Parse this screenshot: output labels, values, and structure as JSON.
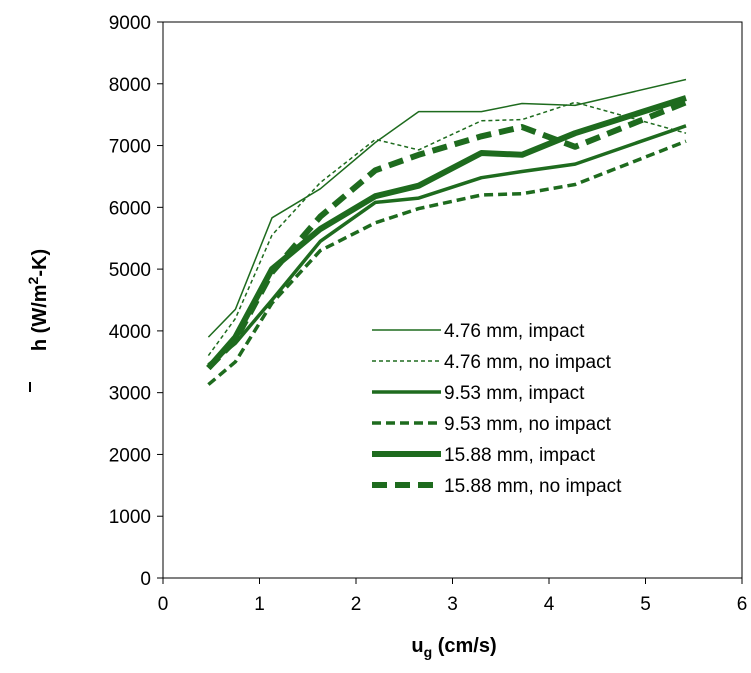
{
  "chart_data": {
    "type": "line",
    "xlabel_main": "u",
    "xlabel_sub": "g",
    "xlabel_rest": " (cm/s)",
    "ylabel_main": "h",
    "ylabel_rest": " (W/m",
    "ylabel_sup": "2",
    "ylabel_end": "-K)",
    "xlim": [
      0,
      6
    ],
    "ylim": [
      0,
      9000
    ],
    "xticks": [
      "0",
      "1",
      "2",
      "3",
      "4",
      "5",
      "6"
    ],
    "yticks": [
      "0",
      "1000",
      "2000",
      "3000",
      "4000",
      "5000",
      "6000",
      "7000",
      "8000",
      "9000"
    ],
    "grid": false,
    "legend_position": "lower-right",
    "color": "#1e6b1e",
    "series": [
      {
        "name": "4.76 mm, impact",
        "width": 1.5,
        "dash": "solid",
        "x": [
          0.47,
          0.75,
          1.13,
          1.63,
          2.2,
          2.65,
          3.3,
          3.72,
          4.27,
          5.42
        ],
        "y": [
          3900,
          4350,
          5830,
          6300,
          7050,
          7550,
          7550,
          7680,
          7650,
          8070
        ]
      },
      {
        "name": "4.76 mm, no impact",
        "width": 1.5,
        "dash": "short",
        "x": [
          0.47,
          0.75,
          1.13,
          1.63,
          2.2,
          2.65,
          3.3,
          3.72,
          4.27,
          5.42
        ],
        "y": [
          3600,
          4200,
          5550,
          6400,
          7100,
          6930,
          7400,
          7420,
          7700,
          7200
        ]
      },
      {
        "name": "9.53 mm, impact",
        "width": 3.5,
        "dash": "solid",
        "x": [
          0.47,
          0.75,
          1.13,
          1.63,
          2.2,
          2.65,
          3.3,
          3.72,
          4.27,
          5.42
        ],
        "y": [
          3450,
          3800,
          4500,
          5450,
          6080,
          6150,
          6480,
          6580,
          6700,
          7320
        ]
      },
      {
        "name": "9.53 mm, no impact",
        "width": 3.5,
        "dash": "medium",
        "x": [
          0.47,
          0.75,
          1.13,
          1.63,
          2.2,
          2.65,
          3.3,
          3.72,
          4.27,
          5.42
        ],
        "y": [
          3130,
          3500,
          4450,
          5300,
          5750,
          5980,
          6200,
          6220,
          6370,
          7070
        ]
      },
      {
        "name": "15.88 mm, impact",
        "width": 6,
        "dash": "solid",
        "x": [
          0.47,
          0.75,
          1.13,
          1.63,
          2.2,
          2.65,
          3.3,
          3.72,
          4.27,
          5.42
        ],
        "y": [
          3400,
          3900,
          5000,
          5650,
          6180,
          6350,
          6880,
          6850,
          7200,
          7770
        ]
      },
      {
        "name": "15.88 mm, no impact",
        "width": 6,
        "dash": "long",
        "x": [
          0.47,
          0.75,
          1.13,
          1.63,
          2.2,
          2.65,
          3.3,
          3.72,
          4.27,
          5.42
        ],
        "y": [
          3400,
          3850,
          4950,
          5850,
          6600,
          6850,
          7150,
          7300,
          6980,
          7700
        ]
      }
    ]
  }
}
